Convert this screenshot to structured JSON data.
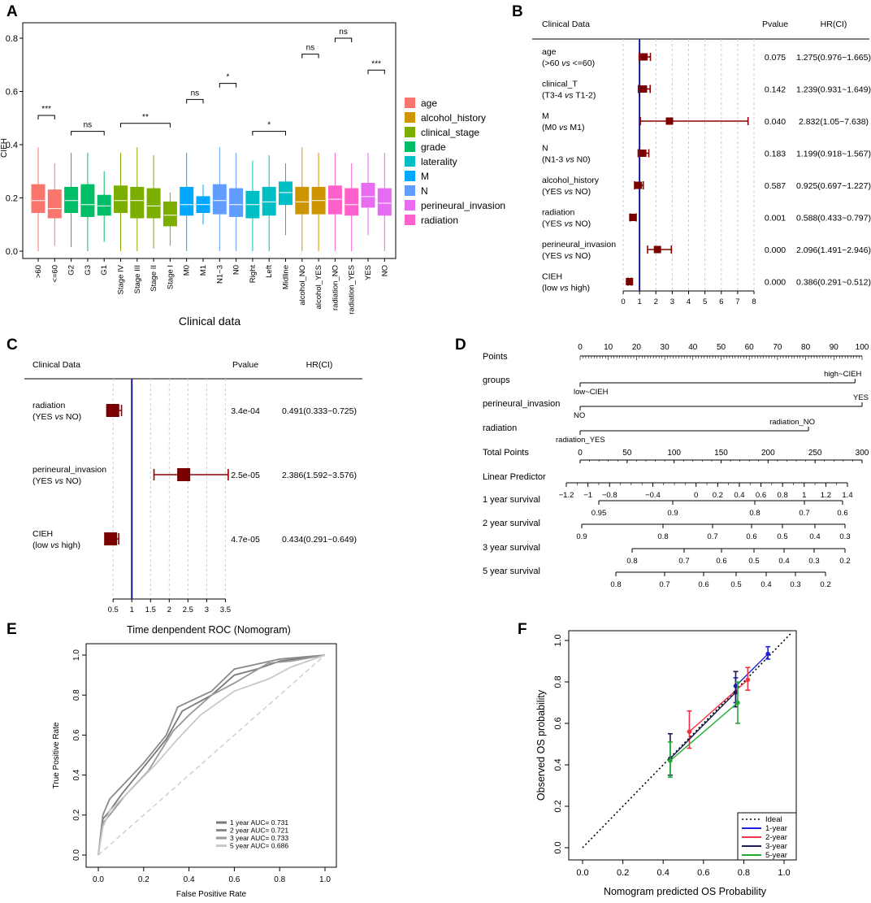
{
  "panels": {
    "A": {
      "letter": "A"
    },
    "B": {
      "letter": "B"
    },
    "C": {
      "letter": "C"
    },
    "D": {
      "letter": "D"
    },
    "E": {
      "letter": "E"
    },
    "F": {
      "letter": "F"
    }
  },
  "chart_data": [
    {
      "panel": "A",
      "type": "box",
      "xlabel": "Clinical data",
      "ylabel": "CIEH",
      "ylim": [
        0,
        0.85
      ],
      "yticks": [
        "0.0",
        "0.2",
        "0.4",
        "0.6",
        "0.8"
      ],
      "legend": [
        {
          "label": "age",
          "color": "#F8766D"
        },
        {
          "label": "alcohol_history",
          "color": "#CD9600"
        },
        {
          "label": "clinical_stage",
          "color": "#7CAE00"
        },
        {
          "label": "grade",
          "color": "#00BE67"
        },
        {
          "label": "laterality",
          "color": "#00BFC4"
        },
        {
          "label": "M",
          "color": "#00A9FF"
        },
        {
          "label": "N",
          "color": "#619CFF"
        },
        {
          "label": "perineural_invasion",
          "color": "#E76BF3"
        },
        {
          "label": "radiation",
          "color": "#FF61CC"
        }
      ],
      "boxes": [
        {
          "label": ">60",
          "group": 0,
          "min": 0.0,
          "q1": 0.145,
          "median": 0.19,
          "q3": 0.25,
          "max": 0.39
        },
        {
          "label": "<=60",
          "group": 0,
          "min": 0.02,
          "q1": 0.125,
          "median": 0.16,
          "q3": 0.23,
          "max": 0.33
        },
        {
          "label": "G2",
          "group": 3,
          "min": 0.015,
          "q1": 0.145,
          "median": 0.19,
          "q3": 0.24,
          "max": 0.37
        },
        {
          "label": "G3",
          "group": 3,
          "min": 0.0,
          "q1": 0.13,
          "median": 0.175,
          "q3": 0.25,
          "max": 0.37
        },
        {
          "label": "G1",
          "group": 3,
          "min": 0.035,
          "q1": 0.135,
          "median": 0.17,
          "q3": 0.21,
          "max": 0.3
        },
        {
          "label": "Stage IV",
          "group": 2,
          "min": 0.0,
          "q1": 0.145,
          "median": 0.19,
          "q3": 0.245,
          "max": 0.37
        },
        {
          "label": "Stage III",
          "group": 2,
          "min": 0.0,
          "q1": 0.125,
          "median": 0.19,
          "q3": 0.24,
          "max": 0.39
        },
        {
          "label": "Stage II",
          "group": 2,
          "min": 0.01,
          "q1": 0.125,
          "median": 0.17,
          "q3": 0.235,
          "max": 0.36
        },
        {
          "label": "Stage I",
          "group": 2,
          "min": 0.02,
          "q1": 0.095,
          "median": 0.135,
          "q3": 0.185,
          "max": 0.22
        },
        {
          "label": "M0",
          "group": 5,
          "min": 0.0,
          "q1": 0.135,
          "median": 0.175,
          "q3": 0.24,
          "max": 0.37
        },
        {
          "label": "M1",
          "group": 5,
          "min": 0.1,
          "q1": 0.145,
          "median": 0.175,
          "q3": 0.205,
          "max": 0.25
        },
        {
          "label": "N1~3",
          "group": 6,
          "min": 0.0,
          "q1": 0.14,
          "median": 0.19,
          "q3": 0.25,
          "max": 0.39
        },
        {
          "label": "N0",
          "group": 6,
          "min": 0.0,
          "q1": 0.13,
          "median": 0.175,
          "q3": 0.235,
          "max": 0.37
        },
        {
          "label": "Right",
          "group": 4,
          "min": 0.0,
          "q1": 0.125,
          "median": 0.175,
          "q3": 0.225,
          "max": 0.34
        },
        {
          "label": "Left",
          "group": 4,
          "min": 0.0,
          "q1": 0.135,
          "median": 0.185,
          "q3": 0.24,
          "max": 0.36
        },
        {
          "label": "Midline",
          "group": 4,
          "min": 0.06,
          "q1": 0.175,
          "median": 0.22,
          "q3": 0.26,
          "max": 0.33
        },
        {
          "label": "alcohol_NO",
          "group": 1,
          "min": 0.0,
          "q1": 0.14,
          "median": 0.185,
          "q3": 0.24,
          "max": 0.39
        },
        {
          "label": "alcohol_YES",
          "group": 1,
          "min": 0.0,
          "q1": 0.14,
          "median": 0.19,
          "q3": 0.24,
          "max": 0.37
        },
        {
          "label": "radiation_NO",
          "group": 8,
          "min": 0.0,
          "q1": 0.14,
          "median": 0.195,
          "q3": 0.245,
          "max": 0.37
        },
        {
          "label": "radiation_YES",
          "group": 8,
          "min": 0.0,
          "q1": 0.135,
          "median": 0.175,
          "q3": 0.235,
          "max": 0.33
        },
        {
          "label": "YES",
          "group": 7,
          "min": 0.06,
          "q1": 0.165,
          "median": 0.205,
          "q3": 0.255,
          "max": 0.37
        },
        {
          "label": "NO",
          "group": 7,
          "min": 0.0,
          "q1": 0.135,
          "median": 0.18,
          "q3": 0.235,
          "max": 0.37
        }
      ],
      "significance": [
        {
          "from": 0,
          "to": 1,
          "label": "***",
          "y": 0.51
        },
        {
          "from": 2,
          "to": 4,
          "label": "ns",
          "y": 0.45
        },
        {
          "from": 5,
          "to": 8,
          "label": "**",
          "y": 0.48
        },
        {
          "from": 9,
          "to": 10,
          "label": "ns",
          "y": 0.57
        },
        {
          "from": 11,
          "to": 12,
          "label": "*",
          "y": 0.63
        },
        {
          "from": 13,
          "to": 15,
          "label": "*",
          "y": 0.45
        },
        {
          "from": 16,
          "to": 17,
          "label": "ns",
          "y": 0.74
        },
        {
          "from": 18,
          "to": 19,
          "label": "ns",
          "y": 0.8
        },
        {
          "from": 20,
          "to": 21,
          "label": "***",
          "y": 0.68
        }
      ]
    },
    {
      "panel": "B",
      "type": "forest",
      "header": {
        "label": "Clinical Data",
        "p": "Pvalue",
        "hr": "HR(CI)"
      },
      "xlim": [
        0,
        8
      ],
      "xticks": [
        "0",
        "1",
        "2",
        "3",
        "4",
        "5",
        "6",
        "7",
        "8"
      ],
      "ref": 1,
      "rows": [
        {
          "name": "age",
          "sub_pre": "(>60 ",
          "sub_vs": "vs",
          "sub_post": " <=60)",
          "hr": 1.275,
          "lo": 0.976,
          "hi": 1.665,
          "p": "0.075",
          "ci": "1.275(0.976~1.665)"
        },
        {
          "name": "clinical_T",
          "sub_pre": "(T3-4 ",
          "sub_vs": "vs",
          "sub_post": " T1-2)",
          "hr": 1.239,
          "lo": 0.931,
          "hi": 1.649,
          "p": "0.142",
          "ci": "1.239(0.931~1.649)"
        },
        {
          "name": "M",
          "sub_pre": "(M0 ",
          "sub_vs": "vs",
          "sub_post": " M1)",
          "hr": 2.832,
          "lo": 1.05,
          "hi": 7.638,
          "p": "0.040",
          "ci": "2.832(1.05~7.638)"
        },
        {
          "name": "N",
          "sub_pre": "(N1-3 ",
          "sub_vs": "vs",
          "sub_post": " N0)",
          "hr": 1.199,
          "lo": 0.918,
          "hi": 1.567,
          "p": "0.183",
          "ci": "1.199(0.918~1.567)"
        },
        {
          "name": "alcohol_history",
          "sub_pre": "(YES ",
          "sub_vs": "vs",
          "sub_post": " NO)",
          "hr": 0.925,
          "lo": 0.697,
          "hi": 1.227,
          "p": "0.587",
          "ci": "0.925(0.697~1.227)"
        },
        {
          "name": "radiation",
          "sub_pre": "(YES ",
          "sub_vs": "vs",
          "sub_post": " NO)",
          "hr": 0.588,
          "lo": 0.433,
          "hi": 0.797,
          "p": "0.001",
          "ci": "0.588(0.433~0.797)"
        },
        {
          "name": "perineural_invasion",
          "sub_pre": "(YES ",
          "sub_vs": "vs",
          "sub_post": " NO)",
          "hr": 2.096,
          "lo": 1.491,
          "hi": 2.946,
          "p": "0.000",
          "ci": "2.096(1.491~2.946)"
        },
        {
          "name": "CIEH",
          "sub_pre": "(low ",
          "sub_vs": "vs",
          "sub_post": " high)",
          "hr": 0.386,
          "lo": 0.291,
          "hi": 0.512,
          "p": "0.000",
          "ci": "0.386(0.291~0.512)"
        }
      ]
    },
    {
      "panel": "C",
      "type": "forest",
      "header": {
        "label": "Clinical Data",
        "p": "Pvalue",
        "hr": "HR(CI)"
      },
      "xlim": [
        0.3,
        3.6
      ],
      "xticks": [
        "0.5",
        "1",
        "1.5",
        "2",
        "2.5",
        "3",
        "3.5"
      ],
      "ref": 1,
      "rows": [
        {
          "name": "radiation",
          "sub_pre": "(YES ",
          "sub_vs": "vs",
          "sub_post": " NO)",
          "hr": 0.491,
          "lo": 0.333,
          "hi": 0.725,
          "p": "3.4e-04",
          "ci": "0.491(0.333~0.725)"
        },
        {
          "name": "perineural_invasion",
          "sub_pre": "(YES ",
          "sub_vs": "vs",
          "sub_post": " NO)",
          "hr": 2.386,
          "lo": 1.592,
          "hi": 3.576,
          "p": "2.5e-05",
          "ci": "2.386(1.592~3.576)"
        },
        {
          "name": "CIEH",
          "sub_pre": "(low ",
          "sub_vs": "vs",
          "sub_post": " high)",
          "hr": 0.434,
          "lo": 0.291,
          "hi": 0.649,
          "p": "4.7e-05",
          "ci": "0.434(0.291~0.649)"
        }
      ]
    },
    {
      "panel": "D",
      "type": "nomogram",
      "rows": [
        {
          "label": "Points",
          "scale": [
            0,
            100
          ],
          "ticks": [
            0,
            10,
            20,
            30,
            40,
            50,
            60,
            70,
            80,
            90,
            100
          ],
          "minor": 1
        },
        {
          "label": "groups",
          "range": [
            0,
            97.5
          ],
          "left": "low~CIEH",
          "right": "high~CIEH"
        },
        {
          "label": "perineural_invasion",
          "range": [
            0,
            100
          ],
          "left": "NO",
          "right": "YES"
        },
        {
          "label": "radiation",
          "range": [
            0,
            81
          ],
          "left": "radiation_YES",
          "right": "radiation_NO"
        },
        {
          "label": "Total Points",
          "scale": [
            0,
            300
          ],
          "ticks": [
            0,
            50,
            100,
            150,
            200,
            250,
            300
          ]
        },
        {
          "label": "Linear Predictor",
          "ticks": [
            -1.2,
            -1,
            -0.8,
            -0.4,
            0,
            0.2,
            0.4,
            0.6,
            0.8,
            1,
            1.2,
            1.4
          ],
          "tick_labels": [
            "−1.2",
            "−1",
            "−0.8",
            "−0.4",
            "0",
            "0.2",
            "0.4",
            "0.6",
            "0.8",
            "1",
            "1.2",
            "1.4"
          ]
        },
        {
          "label": "1 year survival",
          "ticks": [
            0.95,
            0.9,
            0.8,
            0.7,
            0.6
          ]
        },
        {
          "label": "2 year survival",
          "ticks": [
            0.9,
            0.8,
            0.7,
            0.6,
            0.5,
            0.4,
            0.3
          ]
        },
        {
          "label": "3 year survival",
          "ticks": [
            0.8,
            0.7,
            0.6,
            0.5,
            0.4,
            0.3,
            0.2
          ]
        },
        {
          "label": "5 year survival",
          "ticks": [
            0.8,
            0.7,
            0.6,
            0.5,
            0.4,
            0.3,
            0.2
          ]
        }
      ]
    },
    {
      "panel": "E",
      "type": "line",
      "title": "Time denpendent ROC (Nomogram)",
      "xlabel": "False Positive Rate",
      "ylabel": "True Positive Rate",
      "xlim": [
        0,
        1
      ],
      "ylim": [
        0,
        1
      ],
      "ticks": [
        "0.0",
        "0.2",
        "0.4",
        "0.6",
        "0.8",
        "1.0"
      ],
      "series": [
        {
          "name": "1 year AUC= 0.731",
          "color": "#7a7a7a",
          "x": [
            0,
            0.02,
            0.05,
            0.1,
            0.2,
            0.3,
            0.37,
            0.5,
            0.6,
            0.7,
            0.8,
            1
          ],
          "y": [
            0,
            0.18,
            0.22,
            0.3,
            0.44,
            0.58,
            0.72,
            0.8,
            0.9,
            0.93,
            0.97,
            1
          ]
        },
        {
          "name": "2 year AUC= 0.721",
          "color": "#8a8a8a",
          "x": [
            0,
            0.02,
            0.05,
            0.1,
            0.2,
            0.3,
            0.35,
            0.5,
            0.6,
            0.72,
            0.8,
            1
          ],
          "y": [
            0,
            0.2,
            0.28,
            0.34,
            0.46,
            0.6,
            0.74,
            0.82,
            0.93,
            0.96,
            0.98,
            1
          ]
        },
        {
          "name": "3 year AUC= 0.733",
          "color": "#999999",
          "x": [
            0,
            0.02,
            0.05,
            0.12,
            0.22,
            0.33,
            0.4,
            0.5,
            0.6,
            0.75,
            0.85,
            1
          ],
          "y": [
            0,
            0.16,
            0.2,
            0.3,
            0.42,
            0.62,
            0.7,
            0.8,
            0.86,
            0.96,
            0.97,
            1
          ]
        },
        {
          "name": "5 year AUC= 0.686",
          "color": "#c8c8c8",
          "x": [
            0,
            0.02,
            0.05,
            0.12,
            0.25,
            0.35,
            0.45,
            0.6,
            0.75,
            0.85,
            1
          ],
          "y": [
            0,
            0.14,
            0.22,
            0.3,
            0.45,
            0.58,
            0.7,
            0.82,
            0.88,
            0.94,
            1
          ]
        }
      ]
    },
    {
      "panel": "F",
      "type": "line",
      "xlabel": "Nomogram predicted OS Probability",
      "ylabel": "Observed OS probability",
      "xlim": [
        -0.05,
        1.05
      ],
      "ylim": [
        -0.05,
        1.05
      ],
      "ticks": [
        "0.0",
        "0.2",
        "0.4",
        "0.6",
        "0.8",
        "1.0"
      ],
      "legend_ideal": "Ideal",
      "series": [
        {
          "name": "1-year",
          "color": "#2222dd",
          "points": [
            {
              "x": 0.76,
              "y": 0.78,
              "lo": 0.7,
              "hi": 0.82
            },
            {
              "x": 0.92,
              "y": 0.935,
              "lo": 0.91,
              "hi": 0.97
            }
          ]
        },
        {
          "name": "2-year",
          "color": "#ee3344",
          "points": [
            {
              "x": 0.53,
              "y": 0.56,
              "lo": 0.48,
              "hi": 0.66
            },
            {
              "x": 0.82,
              "y": 0.81,
              "lo": 0.76,
              "hi": 0.87
            }
          ]
        },
        {
          "name": "3-year",
          "color": "#1a1a55",
          "points": [
            {
              "x": 0.435,
              "y": 0.43,
              "lo": 0.35,
              "hi": 0.55
            },
            {
              "x": 0.76,
              "y": 0.75,
              "lo": 0.68,
              "hi": 0.85
            }
          ]
        },
        {
          "name": "5-year",
          "color": "#22aa33",
          "points": [
            {
              "x": 0.435,
              "y": 0.42,
              "lo": 0.34,
              "hi": 0.51
            },
            {
              "x": 0.77,
              "y": 0.7,
              "lo": 0.6,
              "hi": 0.8
            }
          ]
        }
      ]
    }
  ]
}
